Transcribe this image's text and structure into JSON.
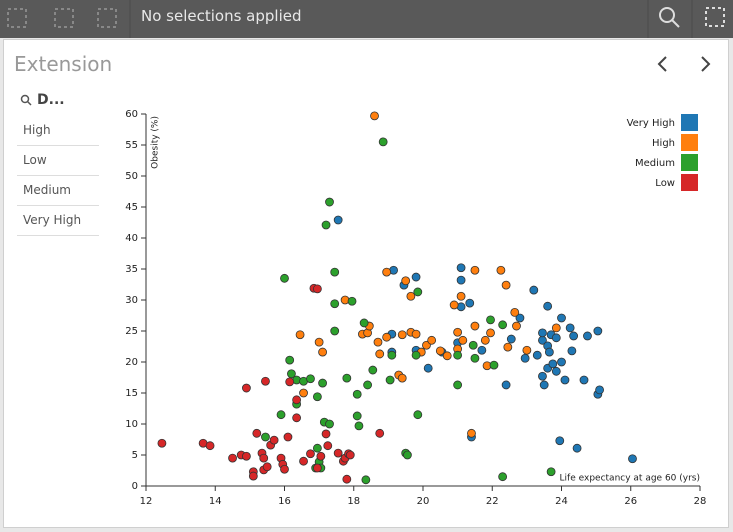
{
  "toolbar": {
    "selection_status": "No selections applied"
  },
  "panel": {
    "title": "Extension"
  },
  "filter": {
    "title": "D...",
    "items": [
      "High",
      "Low",
      "Medium",
      "Very High"
    ]
  },
  "chart_data": {
    "type": "scatter",
    "x_label": "Life expectancy at age 60 (yrs)",
    "y_label": "Obesity (%)",
    "xlim": [
      12,
      28
    ],
    "xticks": [
      12,
      14,
      16,
      18,
      20,
      22,
      24,
      26,
      28
    ],
    "ylim": [
      0,
      60
    ],
    "yticks": [
      0,
      5,
      10,
      15,
      20,
      25,
      30,
      35,
      40,
      45,
      50,
      55,
      60
    ],
    "legend": "top-right",
    "series": [
      {
        "name": "Very High",
        "color": "#1f77b4",
        "x": [
          17.55,
          19.15,
          19.45,
          19.8,
          19.1,
          19.1,
          19.8,
          20.15,
          20.55,
          21,
          21.1,
          21.1,
          21.1,
          21.35,
          21.4,
          21.7,
          22.4,
          22.55,
          22.8,
          22.95,
          23.2,
          23.3,
          23.45,
          23.45,
          23.6,
          23.6,
          23.65,
          23.45,
          23.5,
          23.6,
          23.75,
          23.85,
          23.7,
          23.85,
          24,
          24.1,
          24,
          24.25,
          24.35,
          24.3,
          24.65,
          24.75,
          25.05,
          25.05,
          25.1,
          23.95,
          24.45,
          26.05
        ],
        "values": [
          42.9,
          34.8,
          32.4,
          33.7,
          24.5,
          21.6,
          21.9,
          19,
          21.6,
          23.1,
          33.2,
          35.2,
          28.9,
          29.5,
          7.9,
          21.9,
          16.3,
          23.7,
          27.1,
          20.6,
          31.6,
          21.1,
          23.5,
          24.7,
          29,
          22.6,
          21.6,
          17.7,
          16.3,
          19,
          19.7,
          18.5,
          24.4,
          23.9,
          27.1,
          17.1,
          20,
          25.5,
          24.2,
          21.8,
          17.1,
          24.2,
          25,
          14.8,
          15.5,
          7.3,
          6.1,
          4.4
        ]
      },
      {
        "name": "High",
        "color": "#ff7f0e",
        "x": [
          18.6,
          17.75,
          17,
          17.1,
          16.45,
          16.55,
          18.25,
          18.4,
          18.45,
          18.7,
          18.75,
          18.95,
          18.95,
          19.3,
          19.4,
          19.5,
          19.65,
          19.4,
          19.65,
          19.8,
          19.95,
          20.1,
          20.25,
          20.5,
          20.7,
          20.9,
          21,
          21.1,
          21,
          21.15,
          21.4,
          21.5,
          21.5,
          21.8,
          21.85,
          22.25,
          22.4,
          22.65,
          22.7,
          23,
          22.45,
          23.85,
          21.95
        ],
        "values": [
          59.7,
          30,
          23.2,
          21.6,
          24.4,
          15,
          24.5,
          24.7,
          25.8,
          23.2,
          21.3,
          24,
          34.5,
          17.9,
          17.4,
          33.1,
          30.6,
          24.4,
          24.8,
          24.5,
          21.6,
          22.7,
          23.5,
          21.8,
          21,
          29.2,
          24.8,
          30.6,
          22.1,
          23.5,
          8.5,
          34.8,
          25.8,
          23.5,
          19.4,
          34.8,
          32.4,
          28,
          25.8,
          21.9,
          22.4,
          25.5,
          24.7
        ]
      },
      {
        "name": "Medium",
        "color": "#2ca02c",
        "x": [
          16,
          16.15,
          16.2,
          16.35,
          16.35,
          15.9,
          15.45,
          16.55,
          16.75,
          16.95,
          17.1,
          17.15,
          17.3,
          16.95,
          17,
          16.9,
          17.05,
          17.3,
          17.2,
          17.45,
          17.45,
          17.45,
          17.95,
          17.8,
          18.1,
          18.1,
          18.15,
          18.3,
          18.4,
          18.55,
          18.35,
          18.85,
          19.05,
          19.1,
          19.5,
          19.55,
          19.85,
          19.85,
          19.8,
          21,
          21,
          21.45,
          21.5,
          21.95,
          22.05,
          22.3,
          22.3,
          23.7
        ],
        "values": [
          33.5,
          20.3,
          18.1,
          17.1,
          13.2,
          11.5,
          7.9,
          16.9,
          17.3,
          14.4,
          16.6,
          10.3,
          10,
          6.1,
          3.9,
          2.9,
          2.9,
          45.8,
          42.1,
          34.5,
          29.4,
          25,
          29.8,
          17.4,
          14.8,
          11.3,
          9.7,
          26.3,
          16.3,
          18.7,
          1,
          55.5,
          17.1,
          21.1,
          5.3,
          5,
          31.3,
          11.5,
          21.1,
          16.3,
          21.1,
          22.7,
          20.6,
          26.8,
          19.5,
          26,
          1.5,
          2.3
        ]
      },
      {
        "name": "Low",
        "color": "#d62728",
        "x": [
          12.46,
          13.65,
          13.85,
          14.5,
          14.75,
          14.9,
          14.9,
          15.2,
          15.35,
          15.4,
          15.1,
          15.1,
          15.4,
          15.5,
          15.45,
          15.6,
          15.7,
          15.9,
          15.95,
          16,
          16.1,
          16.15,
          16.35,
          16.35,
          16.55,
          16.75,
          16.85,
          16.95,
          16.95,
          17.05,
          17.2,
          17.25,
          17.55,
          17.7,
          17.75,
          17.85,
          17.9,
          17.8,
          18.75
        ],
        "values": [
          6.9,
          6.9,
          6.5,
          4.5,
          5,
          4.8,
          15.8,
          8.5,
          5.3,
          4.5,
          2.3,
          1.6,
          2.6,
          3.1,
          16.9,
          6.6,
          7.4,
          4.5,
          3.5,
          2.7,
          7.9,
          16.8,
          13.9,
          11,
          4,
          5.2,
          31.9,
          31.8,
          2.9,
          4.8,
          8.4,
          6.5,
          5.3,
          4,
          4.5,
          5.2,
          5,
          1.1,
          8.5
        ]
      }
    ]
  }
}
